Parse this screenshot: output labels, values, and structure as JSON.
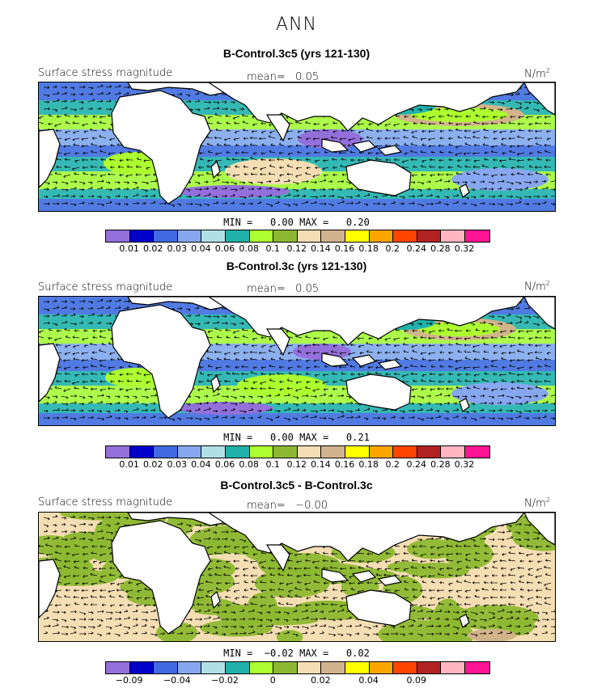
{
  "figure": {
    "title": "ANN"
  },
  "panels": [
    {
      "title": "B-Control.3c5 (yrs 121-130)",
      "variable": "Surface stress magnitude",
      "mean_label": "mean=",
      "mean_value": "0.05",
      "units_base": "N/m",
      "units_exp": "2",
      "min_label": "MIN =",
      "min_value": "0.00",
      "max_label": "MAX =",
      "max_value": "0.20"
    },
    {
      "title": "B-Control.3c (yrs 121-130)",
      "variable": "Surface stress magnitude",
      "mean_label": "mean=",
      "mean_value": "0.05",
      "units_base": "N/m",
      "units_exp": "2",
      "min_label": "MIN =",
      "min_value": "0.00",
      "max_label": "MAX =",
      "max_value": "0.21"
    },
    {
      "title": "B-Control.3c5 - B-Control.3c",
      "variable": "Surface stress magnitude",
      "mean_label": "mean=",
      "mean_value": "−0.00",
      "units_base": "N/m",
      "units_exp": "2",
      "min_label": "MIN =",
      "min_value": "−0.02",
      "max_label": "MAX =",
      "max_value": "0.02"
    }
  ],
  "colorbars": {
    "colors": [
      "#9370db",
      "#0000cd",
      "#4169e1",
      "#87a8f0",
      "#b0e0e6",
      "#20b2aa",
      "#adff2f",
      "#8db832",
      "#f5deb3",
      "#d2b48c",
      "#ffff00",
      "#ffa500",
      "#ff4500",
      "#b22222",
      "#ffb6c1",
      "#ff1493"
    ],
    "abs_ticks": [
      "0.01",
      "0.02",
      "0.03",
      "0.04",
      "0.06",
      "0.08",
      "0.1",
      "0.12",
      "0.14",
      "0.16",
      "0.18",
      "0.2",
      "0.24",
      "0.28",
      "0.32"
    ],
    "diff_ticks": [
      {
        "boundary": 1,
        "label": "−0.09"
      },
      {
        "boundary": 3,
        "label": "−0.04"
      },
      {
        "boundary": 5,
        "label": "−0.02"
      },
      {
        "boundary": 7,
        "label": "0"
      },
      {
        "boundary": 9,
        "label": "0.02"
      },
      {
        "boundary": 11,
        "label": "0.04"
      },
      {
        "boundary": 13,
        "label": "0.09"
      }
    ]
  }
}
